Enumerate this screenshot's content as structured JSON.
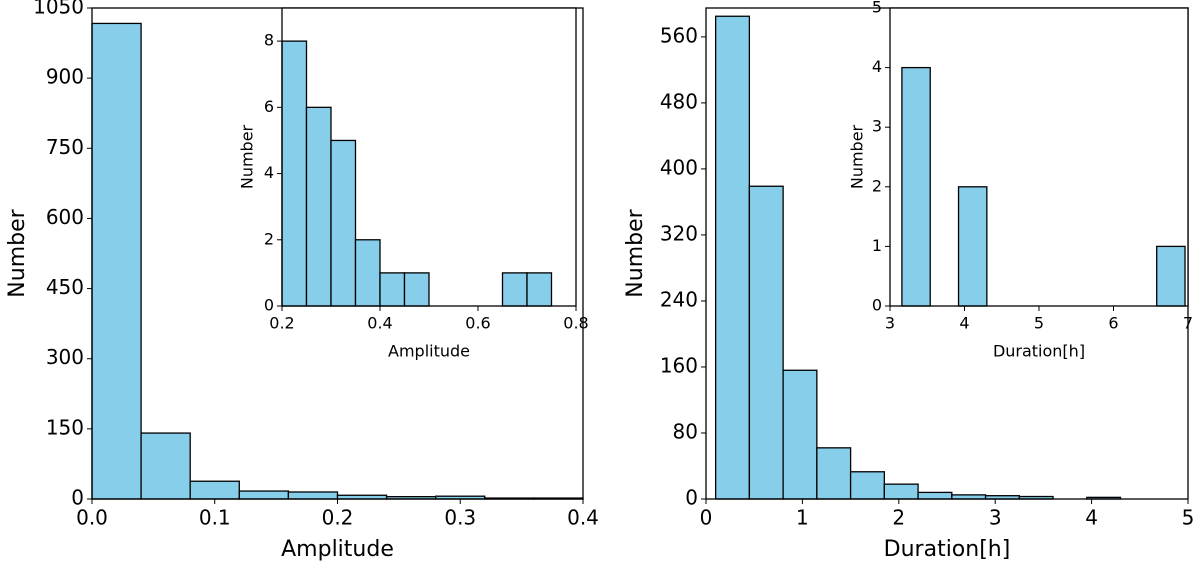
{
  "chart_data": [
    {
      "type": "histogram",
      "x_label": "Amplitude",
      "y_label": "Number",
      "color": "#87ceeb",
      "bins": [
        0,
        0.04,
        0.08,
        0.12,
        0.16,
        0.2,
        0.24,
        0.28,
        0.32,
        0.36,
        0.4
      ],
      "values": [
        1017,
        141,
        38,
        17,
        15,
        8,
        5,
        6,
        2,
        2
      ],
      "xlim": [
        0,
        0.4
      ],
      "ylim": [
        0,
        1050
      ],
      "xticks": [
        {
          "value": 0,
          "label": "0.0"
        },
        0.1,
        0.2,
        0.3,
        0.4
      ],
      "yticks": [
        0,
        150,
        300,
        450,
        600,
        750,
        900,
        1050
      ]
    },
    {
      "type": "histogram",
      "x_label": "Amplitude",
      "y_label": "Number",
      "color": "#87ceeb",
      "bins": [
        0.2,
        0.25,
        0.3,
        0.35,
        0.4,
        0.45,
        0.5,
        0.55,
        0.6,
        0.65,
        0.7,
        0.75
      ],
      "values": [
        8,
        6,
        5,
        2,
        1,
        1,
        0,
        0,
        0,
        1,
        1
      ],
      "xlim": [
        0.2,
        0.8
      ],
      "ylim": [
        0,
        9
      ],
      "xticks": [
        0.2,
        0.4,
        0.6,
        0.8
      ],
      "yticks": [
        0,
        2,
        4,
        6,
        8
      ]
    },
    {
      "type": "histogram",
      "x_label": "Duration[h]",
      "y_label": "Number",
      "color": "#87ceeb",
      "bins": [
        0.1,
        0.45,
        0.8,
        1.15,
        1.5,
        1.85,
        2.2,
        2.55,
        2.9,
        3.25,
        3.6,
        3.95,
        4.3
      ],
      "values": [
        585,
        379,
        156,
        62,
        33,
        18,
        8,
        5,
        4,
        3,
        0,
        2
      ],
      "xlim": [
        0,
        5
      ],
      "ylim": [
        0,
        595
      ],
      "xticks": [
        0,
        1,
        2,
        3,
        4,
        5
      ],
      "yticks": [
        0,
        80,
        160,
        240,
        320,
        400,
        480,
        560
      ]
    },
    {
      "type": "histogram",
      "x_label": "Duration[h]",
      "y_label": "Number",
      "color": "#87ceeb",
      "bins": [
        3.16,
        3.54,
        3.92,
        4.3,
        4.68,
        5.06,
        5.44,
        5.82,
        6.2,
        6.58,
        6.96
      ],
      "values": [
        4,
        0,
        2,
        0,
        0,
        0,
        0,
        0,
        0,
        1
      ],
      "xlim": [
        3,
        7
      ],
      "ylim": [
        0,
        5
      ],
      "xticks": [
        3,
        4,
        5,
        6,
        7
      ],
      "yticks": [
        0,
        1,
        2,
        3,
        4,
        5
      ]
    }
  ]
}
